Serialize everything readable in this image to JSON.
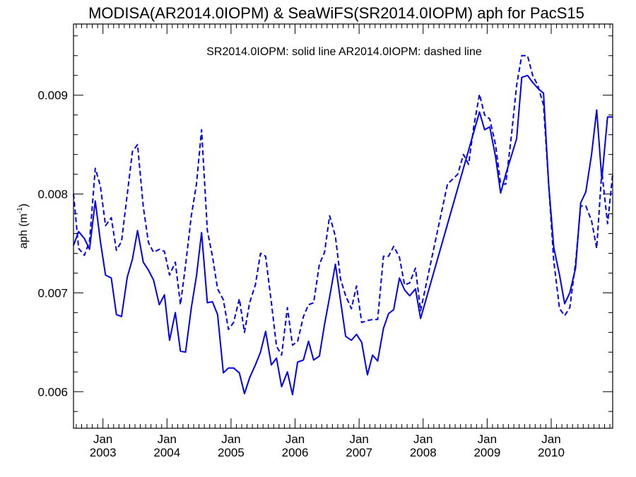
{
  "chart_data": {
    "type": "line",
    "title": "MODISA(AR2014.0IOPM) & SeaWiFS(SR2014.0IOPM)  aph for PacS15",
    "annotation": "SR2014.0IOPM: solid line   AR2014.0IOPM: dashed line",
    "ylabel_base": "aph (m",
    "ylabel_exp": "-1",
    "ylabel_close": ")",
    "xlim": [
      2002.54,
      2010.96
    ],
    "ylim": [
      0.00563,
      0.00972
    ],
    "yticks": [
      0.006,
      0.007,
      0.008,
      0.009
    ],
    "ytick_labels": [
      "0.006",
      "0.007",
      "0.008",
      "0.009"
    ],
    "xticks": [
      2003.0,
      2004.0,
      2005.0,
      2006.0,
      2007.0,
      2008.0,
      2009.0,
      2010.0
    ],
    "xtick_month_label": "Jan",
    "xtick_year_labels": [
      "2003",
      "2004",
      "2005",
      "2006",
      "2007",
      "2008",
      "2009",
      "2010"
    ],
    "grid": false,
    "line_color": "#0000ee",
    "series": [
      {
        "name": "SR2014.0IOPM",
        "style": "solid",
        "x": [
          2002.54,
          2002.62,
          2002.71,
          2002.79,
          2002.88,
          2002.96,
          2003.04,
          2003.13,
          2003.21,
          2003.29,
          2003.38,
          2003.46,
          2003.54,
          2003.63,
          2003.71,
          2003.79,
          2003.88,
          2003.96,
          2004.04,
          2004.13,
          2004.21,
          2004.29,
          2004.38,
          2004.46,
          2004.54,
          2004.63,
          2004.71,
          2004.79,
          2004.88,
          2004.96,
          2005.04,
          2005.13,
          2005.21,
          2005.29,
          2005.38,
          2005.46,
          2005.54,
          2005.63,
          2005.71,
          2005.79,
          2005.88,
          2005.96,
          2006.04,
          2006.13,
          2006.21,
          2006.29,
          2006.38,
          2006.46,
          2006.54,
          2006.63,
          2006.71,
          2006.79,
          2006.88,
          2006.96,
          2007.04,
          2007.13,
          2007.21,
          2007.29,
          2007.38,
          2007.46,
          2007.54,
          2007.63,
          2007.71,
          2007.79,
          2007.88,
          2007.96,
          2008.88,
          2008.96,
          2009.04,
          2009.13,
          2009.21,
          2009.29,
          2009.38,
          2009.46,
          2009.54,
          2009.63,
          2009.71,
          2009.79,
          2009.88,
          2009.96,
          2010.04,
          2010.13,
          2010.21,
          2010.29,
          2010.38,
          2010.46,
          2010.54,
          2010.63,
          2010.71,
          2010.79,
          2010.88,
          2010.96
        ],
        "y": [
          0.00748,
          0.00762,
          0.00755,
          0.00744,
          0.00793,
          0.00752,
          0.00718,
          0.00715,
          0.00678,
          0.00676,
          0.00716,
          0.00734,
          0.00763,
          0.00731,
          0.00723,
          0.00713,
          0.00688,
          0.00698,
          0.00652,
          0.0068,
          0.00641,
          0.0064,
          0.00685,
          0.00717,
          0.00761,
          0.0069,
          0.00691,
          0.00678,
          0.00619,
          0.00624,
          0.00624,
          0.00619,
          0.00598,
          0.00614,
          0.00627,
          0.0064,
          0.00661,
          0.00627,
          0.00634,
          0.00605,
          0.0062,
          0.00597,
          0.0063,
          0.00632,
          0.00651,
          0.00632,
          0.00636,
          0.00668,
          0.00696,
          0.00729,
          0.00692,
          0.00656,
          0.00652,
          0.00658,
          0.0065,
          0.00617,
          0.00637,
          0.00631,
          0.00664,
          0.00679,
          0.00683,
          0.00715,
          0.00703,
          0.00697,
          0.00704,
          0.00674,
          0.00883,
          0.00865,
          0.00868,
          0.00838,
          0.00801,
          0.0082,
          0.00839,
          0.00856,
          0.00918,
          0.0092,
          0.00913,
          0.00907,
          0.00902,
          0.0081,
          0.00746,
          0.00718,
          0.00689,
          0.007,
          0.00725,
          0.00791,
          0.00802,
          0.0084,
          0.00885,
          0.00815,
          0.00878,
          0.00878
        ]
      },
      {
        "name": "AR2014.0IOPM",
        "style": "dashed",
        "x": [
          2002.54,
          2002.62,
          2002.71,
          2002.79,
          2002.88,
          2002.96,
          2003.04,
          2003.13,
          2003.21,
          2003.29,
          2003.38,
          2003.46,
          2003.54,
          2003.63,
          2003.71,
          2003.79,
          2003.88,
          2003.96,
          2004.04,
          2004.13,
          2004.21,
          2004.29,
          2004.38,
          2004.46,
          2004.54,
          2004.63,
          2004.71,
          2004.79,
          2004.88,
          2004.96,
          2005.04,
          2005.13,
          2005.21,
          2005.29,
          2005.38,
          2005.46,
          2005.54,
          2005.63,
          2005.71,
          2005.79,
          2005.88,
          2005.96,
          2006.04,
          2006.13,
          2006.21,
          2006.29,
          2006.38,
          2006.46,
          2006.54,
          2006.63,
          2006.71,
          2006.79,
          2006.88,
          2006.96,
          2007.04,
          2007.13,
          2007.21,
          2007.29,
          2007.38,
          2007.46,
          2007.54,
          2007.63,
          2007.71,
          2007.79,
          2007.88,
          2007.96,
          2008.38,
          2008.46,
          2008.54,
          2008.63,
          2008.71,
          2008.79,
          2008.88,
          2008.96,
          2009.04,
          2009.13,
          2009.21,
          2009.29,
          2009.38,
          2009.46,
          2009.54,
          2009.63,
          2009.71,
          2009.79,
          2009.88,
          2009.96,
          2010.04,
          2010.13,
          2010.21,
          2010.29,
          2010.38,
          2010.46,
          2010.54,
          2010.63,
          2010.71,
          2010.79,
          2010.88,
          2010.96
        ],
        "y": [
          0.008,
          0.00745,
          0.00738,
          0.00752,
          0.00826,
          0.00808,
          0.00768,
          0.00776,
          0.00743,
          0.00752,
          0.008,
          0.00843,
          0.0085,
          0.00787,
          0.00751,
          0.00741,
          0.00744,
          0.00742,
          0.00718,
          0.00731,
          0.00688,
          0.00728,
          0.00778,
          0.0081,
          0.00865,
          0.00763,
          0.00737,
          0.00704,
          0.00693,
          0.00663,
          0.0067,
          0.00694,
          0.0066,
          0.0069,
          0.00708,
          0.0074,
          0.00737,
          0.0069,
          0.00646,
          0.00637,
          0.00685,
          0.00647,
          0.00651,
          0.00676,
          0.00688,
          0.0069,
          0.00729,
          0.00741,
          0.00778,
          0.00757,
          0.00714,
          0.00697,
          0.00684,
          0.00707,
          0.0067,
          0.00672,
          0.00673,
          0.00673,
          0.00737,
          0.00737,
          0.00747,
          0.00736,
          0.00708,
          0.0071,
          0.00725,
          0.00682,
          0.0081,
          0.00815,
          0.0082,
          0.0084,
          0.0083,
          0.00868,
          0.00901,
          0.0088,
          0.00876,
          0.0085,
          0.0081,
          0.0081,
          0.0086,
          0.0091,
          0.0094,
          0.0094,
          0.0092,
          0.0091,
          0.0089,
          0.0081,
          0.00732,
          0.00684,
          0.00677,
          0.00685,
          0.0073,
          0.00788,
          0.00788,
          0.00773,
          0.00745,
          0.00823,
          0.0077,
          0.0082
        ]
      }
    ]
  }
}
